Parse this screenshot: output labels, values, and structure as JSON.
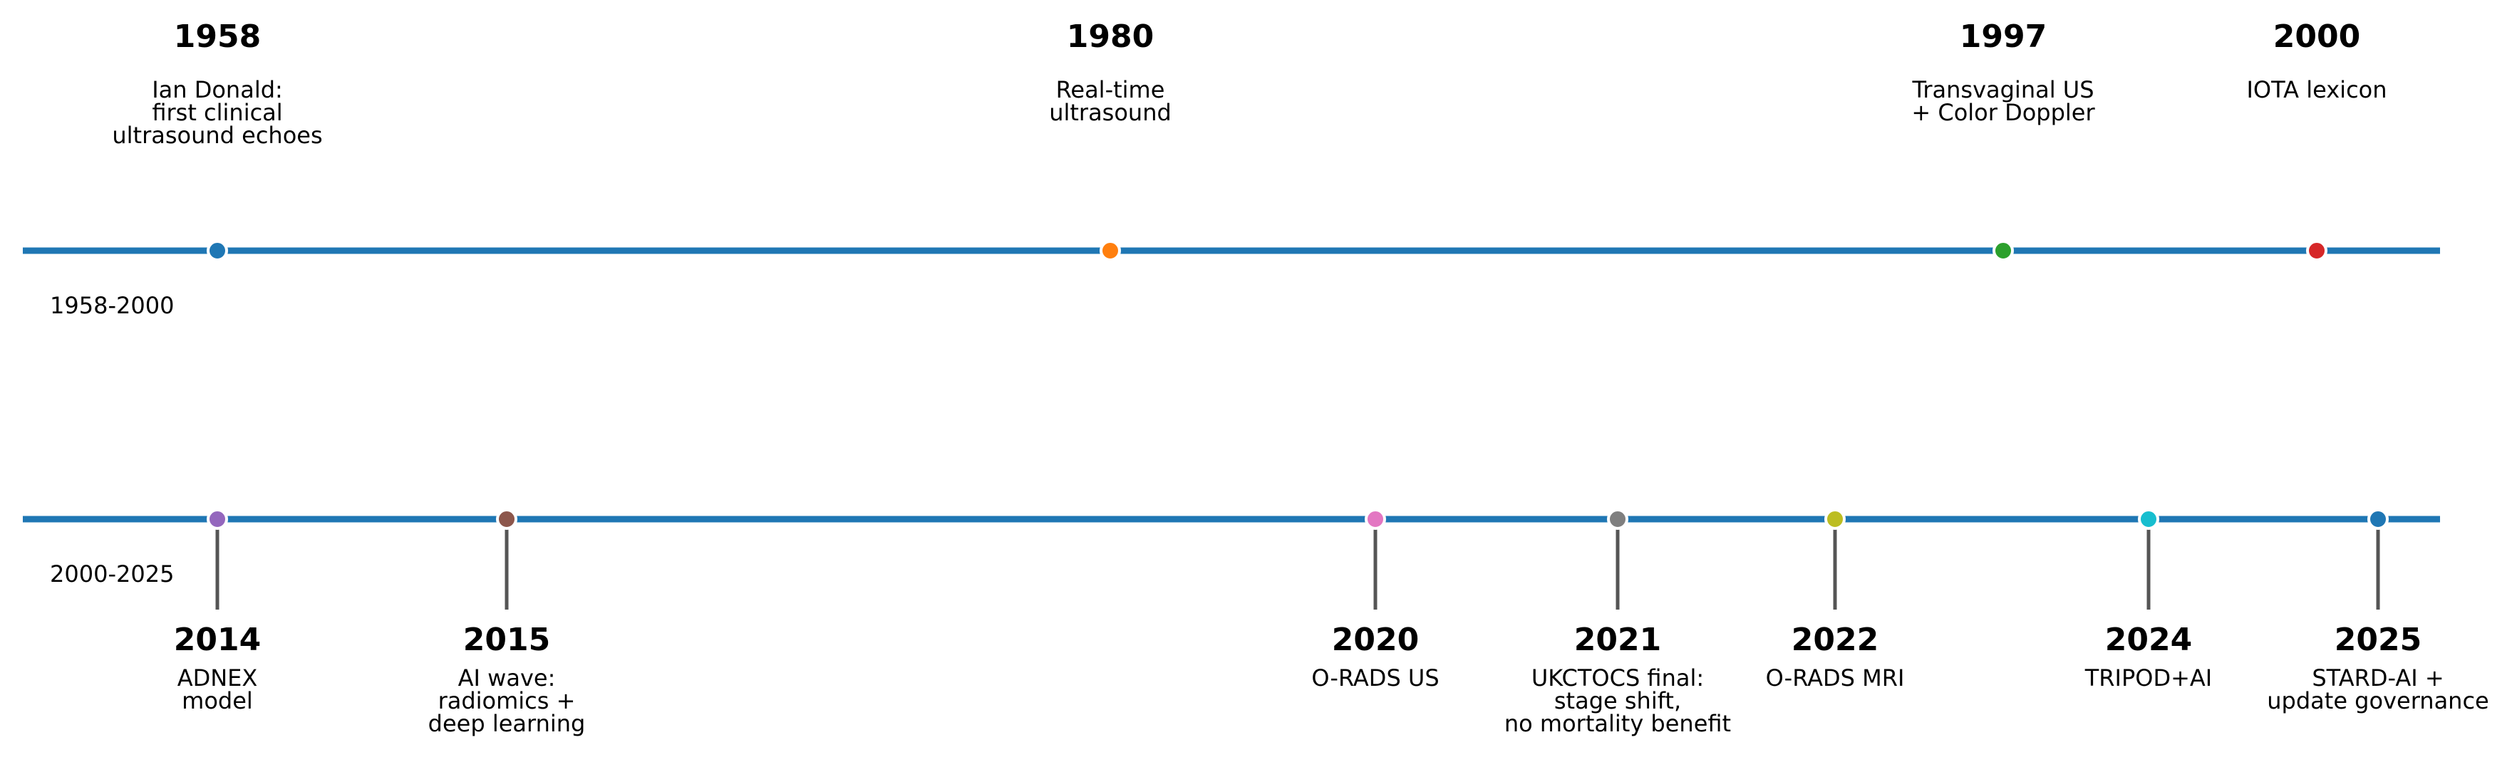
{
  "colors": {
    "axis": "#1f77b4",
    "stem": "#555555",
    "marker_edge": "#ffffff"
  },
  "periods": [
    {
      "label": "1958-2000",
      "events": [
        {
          "year": "1958",
          "lines": [
            "Ian Donald:",
            "first clinical",
            "ultrasound echoes"
          ],
          "color": "#1f77b4"
        },
        {
          "year": "1980",
          "lines": [
            "Real-time",
            "ultrasound"
          ],
          "color": "#ff7f0e"
        },
        {
          "year": "1997",
          "lines": [
            "Transvaginal US",
            "+ Color Doppler"
          ],
          "color": "#2ca02c"
        },
        {
          "year": "2000",
          "lines": [
            "IOTA lexicon"
          ],
          "color": "#d62728"
        }
      ]
    },
    {
      "label": "2000-2025",
      "events": [
        {
          "year": "2014",
          "lines": [
            "ADNEX",
            "model"
          ],
          "color": "#9467bd"
        },
        {
          "year": "2015",
          "lines": [
            "AI wave:",
            "radiomics +",
            "deep learning"
          ],
          "color": "#8c564b"
        },
        {
          "year": "2020",
          "lines": [
            "O-RADS US"
          ],
          "color": "#e377c2"
        },
        {
          "year": "2021",
          "lines": [
            "UKCTOCS final:",
            "stage shift,",
            "no mortality benefit"
          ],
          "color": "#7f7f7f"
        },
        {
          "year": "2022",
          "lines": [
            "O-RADS MRI"
          ],
          "color": "#bcbd22"
        },
        {
          "year": "2024",
          "lines": [
            "TRIPOD+AI"
          ],
          "color": "#17becf"
        },
        {
          "year": "2025",
          "lines": [
            "STARD-AI +",
            "update governance"
          ],
          "color": "#1f77b4"
        }
      ]
    }
  ]
}
